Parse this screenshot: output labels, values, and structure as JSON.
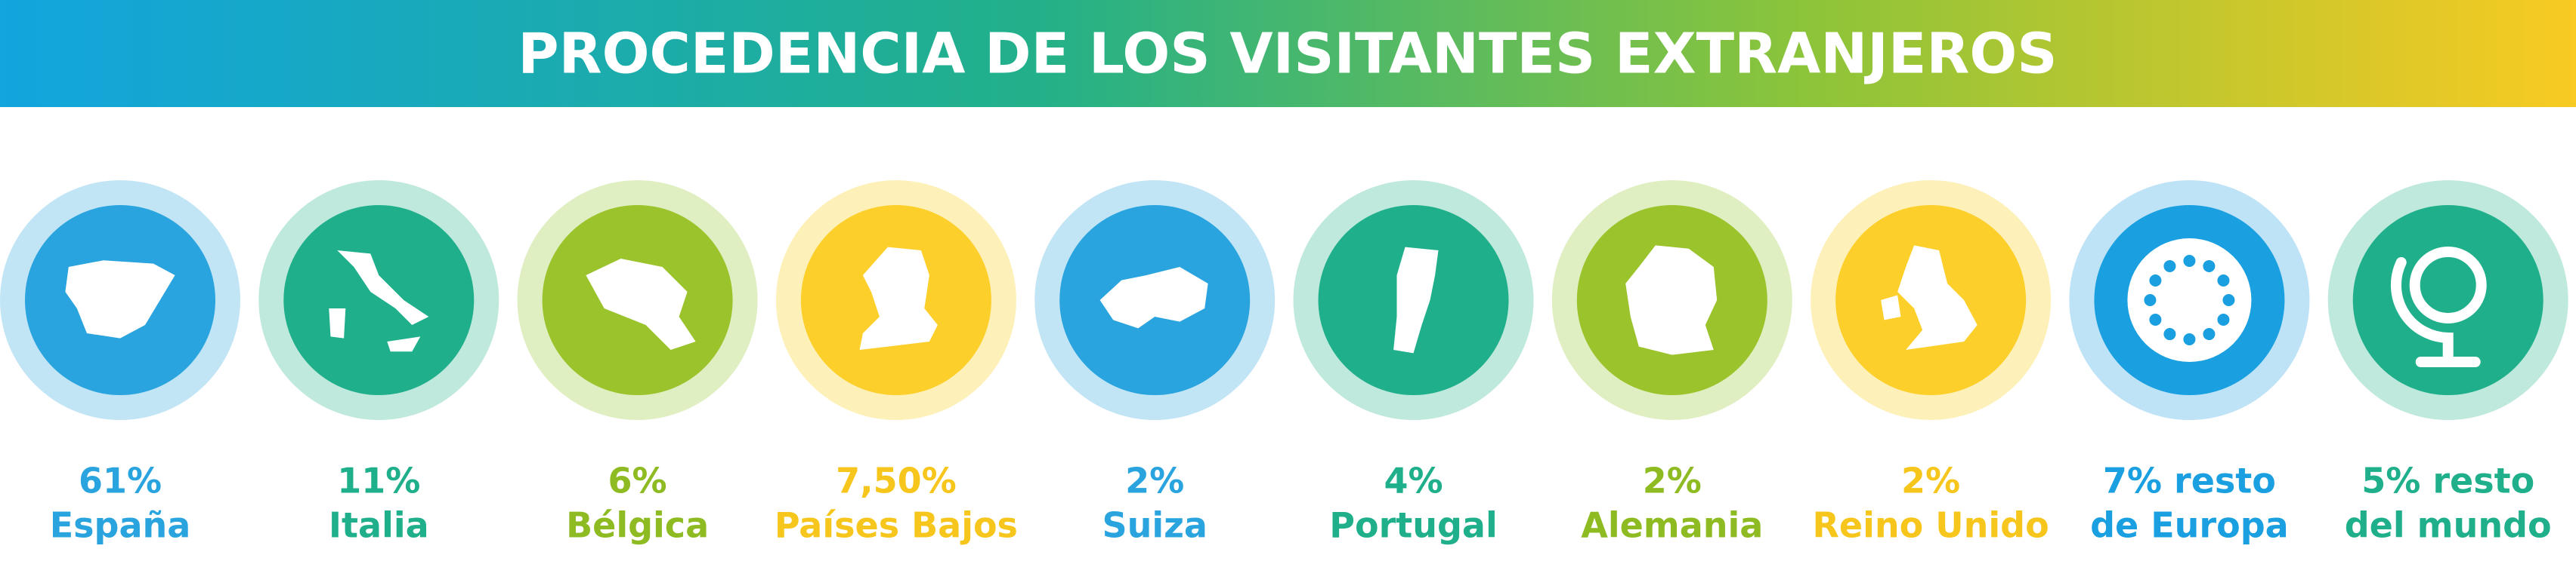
{
  "header": {
    "title": "PROCEDENCIA DE LOS VISITANTES EXTRANJEROS"
  },
  "items": [
    {
      "value": "61%",
      "label": "España"
    },
    {
      "value": "11%",
      "label": "Italia"
    },
    {
      "value": "6%",
      "label": "Bélgica"
    },
    {
      "value": "7,50%",
      "label": "Países Bajos"
    },
    {
      "value": "2%",
      "label": "Suiza"
    },
    {
      "value": "4%",
      "label": "Portugal"
    },
    {
      "value": "2%",
      "label": "Alemania"
    },
    {
      "value": "2%",
      "label": "Reino Unido"
    },
    {
      "value": "7% resto",
      "label": "de Europa"
    },
    {
      "value": "5% resto",
      "label": "del mundo"
    }
  ]
}
